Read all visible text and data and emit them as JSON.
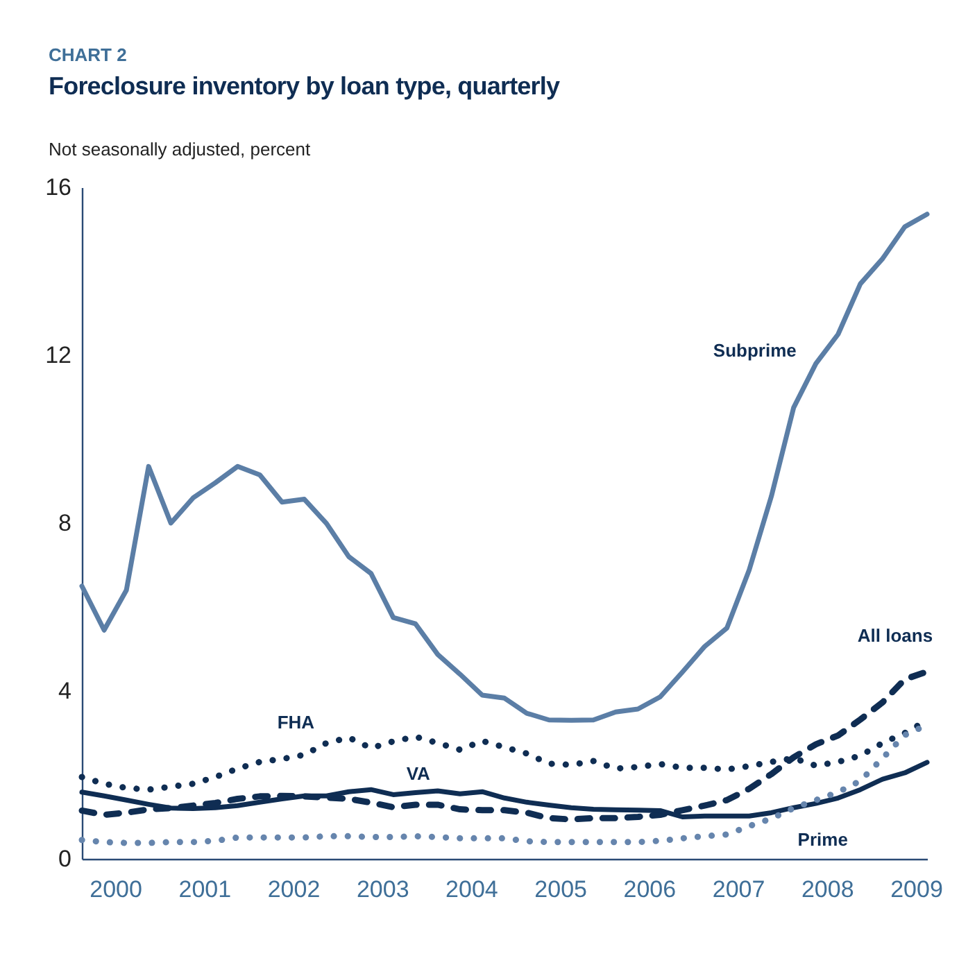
{
  "chart_data": {
    "type": "line",
    "title": "Foreclosure inventory by loan type, quarterly",
    "annotations": [
      "CHART 2"
    ],
    "ylabel": "Not seasonally adjusted, percent",
    "x": [
      2000,
      2000.25,
      2000.5,
      2000.75,
      2001,
      2001.25,
      2001.5,
      2001.75,
      2002,
      2002.25,
      2002.5,
      2002.75,
      2003,
      2003.25,
      2003.5,
      2003.75,
      2004,
      2004.25,
      2004.5,
      2004.75,
      2005,
      2005.25,
      2005.5,
      2005.75,
      2006,
      2006.25,
      2006.5,
      2006.75,
      2007,
      2007.25,
      2007.5,
      2007.75,
      2008,
      2008.25,
      2008.5,
      2008.75,
      2009,
      2009.25,
      2009.5
    ],
    "xlim": [
      2000,
      2009.5
    ],
    "xticks": [
      {
        "value": 2000.375,
        "label": "2000"
      },
      {
        "value": 2001.375,
        "label": "2001"
      },
      {
        "value": 2002.375,
        "label": "2002"
      },
      {
        "value": 2003.375,
        "label": "2003"
      },
      {
        "value": 2004.375,
        "label": "2004"
      },
      {
        "value": 2005.375,
        "label": "2005"
      },
      {
        "value": 2006.375,
        "label": "2006"
      },
      {
        "value": 2007.375,
        "label": "2007"
      },
      {
        "value": 2008.375,
        "label": "2008"
      },
      {
        "value": 2009.375,
        "label": "2009"
      }
    ],
    "ylim": [
      0,
      16
    ],
    "yticks": [
      0,
      4,
      8,
      12,
      16
    ],
    "grid": false,
    "series": [
      {
        "name": "Subprime",
        "color": "#5b7ea6",
        "line_style": "solid",
        "values": [
          6.5,
          5.45,
          6.4,
          9.35,
          8.0,
          8.6,
          8.96,
          9.35,
          9.15,
          8.5,
          8.57,
          7.99,
          7.2,
          6.8,
          5.75,
          5.6,
          4.87,
          4.4,
          3.9,
          3.83,
          3.47,
          3.31,
          3.3,
          3.31,
          3.5,
          3.57,
          3.86,
          4.45,
          5.06,
          5.5,
          6.88,
          8.64,
          10.75,
          11.8,
          12.5,
          13.7,
          14.3,
          15.06,
          15.36
        ]
      },
      {
        "name": "All loans",
        "color": "#0f2d53",
        "line_style": "dashed",
        "values": [
          1.15,
          1.05,
          1.1,
          1.18,
          1.21,
          1.27,
          1.33,
          1.43,
          1.49,
          1.5,
          1.49,
          1.46,
          1.43,
          1.34,
          1.23,
          1.29,
          1.29,
          1.18,
          1.16,
          1.16,
          1.1,
          0.97,
          0.94,
          0.97,
          0.97,
          1.0,
          1.05,
          1.16,
          1.27,
          1.4,
          1.67,
          2.02,
          2.42,
          2.73,
          2.94,
          3.32,
          3.73,
          4.28,
          4.46
        ]
      },
      {
        "name": "FHA",
        "color": "#0f2d53",
        "line_style": "dotted",
        "values": [
          1.95,
          1.79,
          1.69,
          1.65,
          1.72,
          1.79,
          1.95,
          2.15,
          2.31,
          2.38,
          2.48,
          2.76,
          2.89,
          2.64,
          2.8,
          2.91,
          2.76,
          2.6,
          2.81,
          2.66,
          2.51,
          2.27,
          2.24,
          2.33,
          2.15,
          2.19,
          2.26,
          2.17,
          2.17,
          2.13,
          2.21,
          2.31,
          2.4,
          2.22,
          2.31,
          2.46,
          2.76,
          3.0,
          3.3
        ]
      },
      {
        "name": "VA",
        "color": "#0f2d53",
        "line_style": "solid",
        "values": [
          1.59,
          1.5,
          1.4,
          1.3,
          1.21,
          1.2,
          1.22,
          1.27,
          1.35,
          1.43,
          1.5,
          1.5,
          1.6,
          1.65,
          1.53,
          1.58,
          1.62,
          1.55,
          1.6,
          1.45,
          1.35,
          1.28,
          1.22,
          1.18,
          1.17,
          1.16,
          1.15,
          1.0,
          1.02,
          1.02,
          1.02,
          1.1,
          1.22,
          1.32,
          1.45,
          1.65,
          1.9,
          2.05,
          2.3
        ]
      },
      {
        "name": "Prime",
        "color": "#6685ad",
        "line_style": "dotted",
        "values": [
          0.45,
          0.4,
          0.38,
          0.38,
          0.4,
          0.4,
          0.43,
          0.51,
          0.51,
          0.51,
          0.51,
          0.54,
          0.54,
          0.52,
          0.52,
          0.54,
          0.52,
          0.49,
          0.49,
          0.49,
          0.42,
          0.4,
          0.4,
          0.4,
          0.4,
          0.4,
          0.43,
          0.49,
          0.54,
          0.58,
          0.78,
          0.96,
          1.21,
          1.4,
          1.59,
          1.86,
          2.4,
          2.95,
          3.19
        ]
      }
    ]
  }
}
